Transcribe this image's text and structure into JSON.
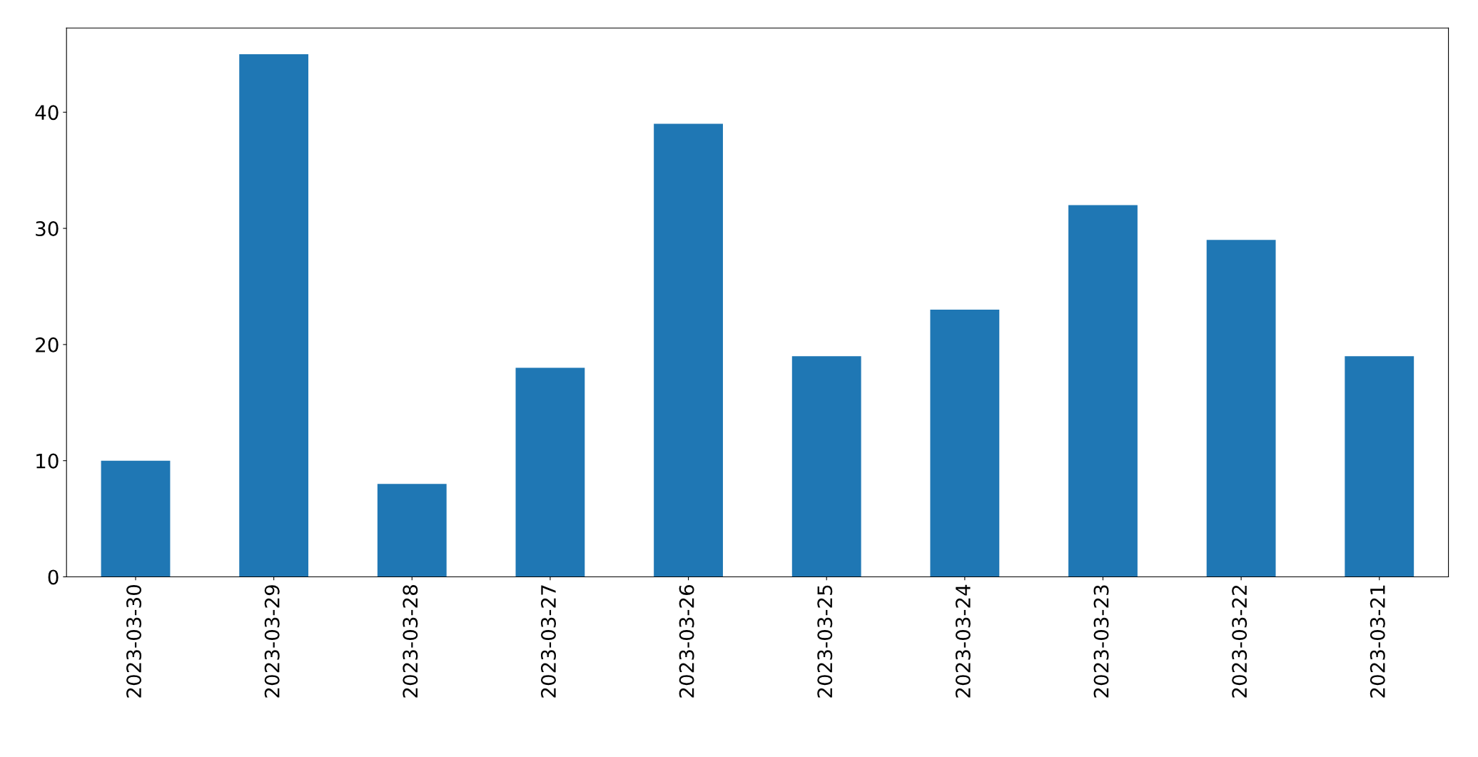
{
  "chart_data": {
    "type": "bar",
    "categories": [
      "2023-03-30",
      "2023-03-29",
      "2023-03-28",
      "2023-03-27",
      "2023-03-26",
      "2023-03-25",
      "2023-03-24",
      "2023-03-23",
      "2023-03-22",
      "2023-03-21"
    ],
    "values": [
      10,
      45,
      8,
      18,
      39,
      19,
      23,
      32,
      29,
      19
    ],
    "color": "#1f77b4",
    "ylim": [
      0,
      47.25
    ],
    "yticks": [
      0,
      10,
      20,
      30,
      40
    ],
    "grid": false,
    "legend": false
  }
}
